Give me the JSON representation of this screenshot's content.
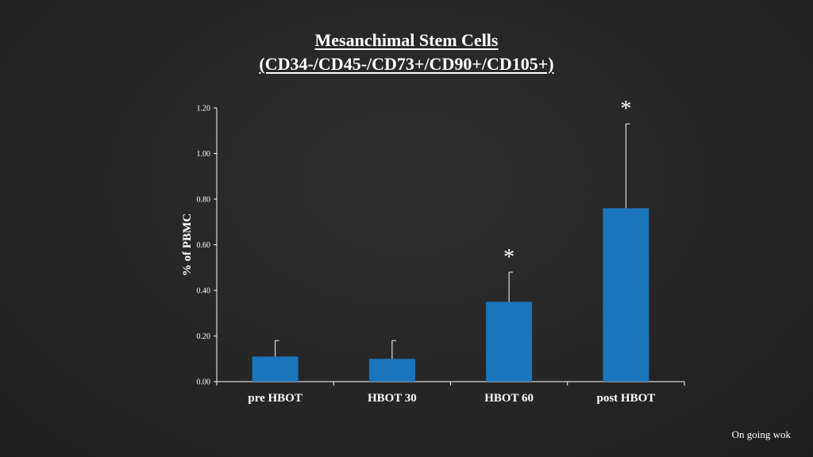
{
  "slide": {
    "title_line_1": "Mesanchimal Stem Cells",
    "title_line_2": "(CD34-/CD45-/CD73+/CD90+/CD105+)",
    "footer_note": "On going wok"
  },
  "colors": {
    "background": "#262626",
    "bar": "#1b75bb",
    "text": "#ffffff",
    "axis": "#ffffff"
  },
  "chart_data": {
    "type": "bar",
    "title": "",
    "xlabel": "",
    "ylabel": "% of PBMC",
    "categories": [
      "pre HBOT",
      "HBOT 30",
      "HBOT 60",
      "post HBOT"
    ],
    "values": [
      0.11,
      0.1,
      0.35,
      0.76
    ],
    "error_upper": [
      0.18,
      0.18,
      0.48,
      1.13
    ],
    "significance": [
      "",
      "",
      "*",
      "*"
    ],
    "ylim": [
      0,
      1.2
    ],
    "yticks": [
      "0.00",
      "0.20",
      "0.40",
      "0.60",
      "0.80",
      "1.00",
      "1.20"
    ],
    "grid": false,
    "legend": "none"
  }
}
